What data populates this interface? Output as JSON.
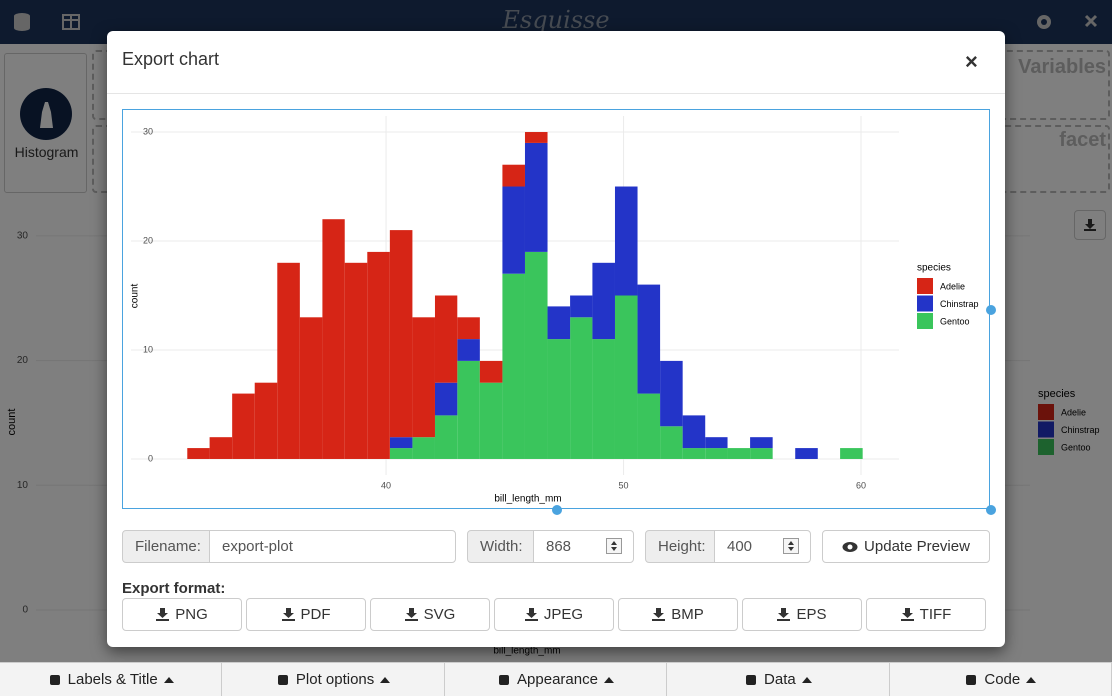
{
  "navbar": {
    "title": "Esquisse"
  },
  "sidebar": {
    "geom_label": "Histogram"
  },
  "dropzones": {
    "variables": "Variables",
    "facet": "facet"
  },
  "background_chart": {
    "y_label": "count",
    "x_label": "bill_length_mm",
    "yticks": [
      0,
      10,
      20,
      30
    ],
    "legend_title": "species",
    "legend": [
      "Adelie",
      "Chinstrap",
      "Gentoo"
    ]
  },
  "modal": {
    "title": "Export chart",
    "close": "×",
    "filename_label": "Filename:",
    "filename": "export-plot",
    "width_label": "Width:",
    "width": 868,
    "height_label": "Height:",
    "height": 400,
    "update_button": "Update Preview",
    "format_label": "Export format:",
    "formats": [
      "PNG",
      "PDF",
      "SVG",
      "JPEG",
      "BMP",
      "EPS",
      "TIFF"
    ]
  },
  "tabs": [
    "Labels & Title",
    "Plot options",
    "Appearance",
    "Data",
    "Code"
  ],
  "chart_data": {
    "type": "histogram",
    "stacked": true,
    "xlabel": "bill_length_mm",
    "ylabel": "count",
    "legend_title": "species",
    "grid": true,
    "bins": [
      31.63,
      32.57,
      33.52,
      34.47,
      35.42,
      36.37,
      37.32,
      38.26,
      39.21,
      40.16,
      41.11,
      42.06,
      43.0,
      43.95,
      44.9,
      45.85,
      46.8,
      47.75,
      48.69,
      49.64,
      50.59,
      51.54,
      52.49,
      53.44,
      54.38,
      55.33,
      56.28,
      57.23,
      58.18,
      59.12,
      60.07
    ],
    "series": [
      {
        "name": "Adelie",
        "color": "#d62516",
        "values": [
          1,
          2,
          6,
          7,
          18,
          13,
          22,
          18,
          19,
          19,
          11,
          8,
          2,
          2,
          2,
          1,
          0,
          0,
          0,
          0,
          0,
          0,
          0,
          0,
          0,
          0,
          0,
          0,
          0,
          0
        ]
      },
      {
        "name": "Chinstrap",
        "color": "#2334c8",
        "values": [
          0,
          0,
          0,
          0,
          0,
          0,
          0,
          0,
          0,
          1,
          0,
          3,
          2,
          0,
          8,
          10,
          3,
          2,
          7,
          10,
          10,
          6,
          3,
          1,
          0,
          1,
          0,
          1,
          0,
          0
        ]
      },
      {
        "name": "Gentoo",
        "color": "#3ac55c",
        "values": [
          0,
          0,
          0,
          0,
          0,
          0,
          0,
          0,
          0,
          1,
          2,
          4,
          9,
          7,
          17,
          19,
          11,
          13,
          11,
          15,
          6,
          3,
          1,
          1,
          1,
          1,
          0,
          0,
          0,
          1
        ]
      }
    ],
    "xlim": [
      29.26,
      61.6
    ],
    "ylim": [
      -1.47,
      31.47
    ],
    "xticks": [
      40,
      50,
      60
    ],
    "yticks": [
      0,
      10,
      20,
      30
    ]
  }
}
